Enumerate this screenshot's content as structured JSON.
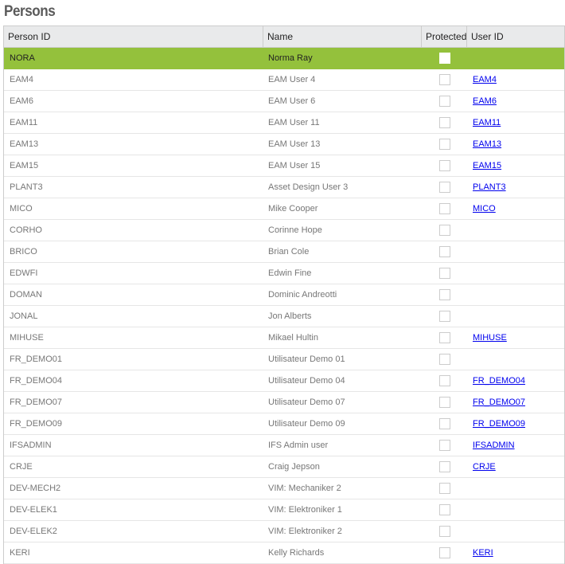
{
  "title": "Persons",
  "columns": [
    "Person ID",
    "Name",
    "Protected",
    "User ID"
  ],
  "rows": [
    {
      "person_id": "NORA",
      "name": "Norma Ray",
      "protected": false,
      "user_id": "",
      "selected": true
    },
    {
      "person_id": "EAM4",
      "name": "EAM User 4",
      "protected": false,
      "user_id": "EAM4"
    },
    {
      "person_id": "EAM6",
      "name": "EAM User 6",
      "protected": false,
      "user_id": "EAM6"
    },
    {
      "person_id": "EAM11",
      "name": "EAM User 11",
      "protected": false,
      "user_id": "EAM11"
    },
    {
      "person_id": "EAM13",
      "name": "EAM User 13",
      "protected": false,
      "user_id": "EAM13"
    },
    {
      "person_id": "EAM15",
      "name": "EAM User 15",
      "protected": false,
      "user_id": "EAM15"
    },
    {
      "person_id": "PLANT3",
      "name": "Asset Design User 3",
      "protected": false,
      "user_id": "PLANT3"
    },
    {
      "person_id": "MICO",
      "name": "Mike Cooper",
      "protected": false,
      "user_id": "MICO"
    },
    {
      "person_id": "CORHO",
      "name": "Corinne Hope",
      "protected": false,
      "user_id": ""
    },
    {
      "person_id": "BRICO",
      "name": "Brian Cole",
      "protected": false,
      "user_id": ""
    },
    {
      "person_id": "EDWFI",
      "name": "Edwin Fine",
      "protected": false,
      "user_id": ""
    },
    {
      "person_id": "DOMAN",
      "name": "Dominic Andreotti",
      "protected": false,
      "user_id": ""
    },
    {
      "person_id": "JONAL",
      "name": "Jon Alberts",
      "protected": false,
      "user_id": ""
    },
    {
      "person_id": "MIHUSE",
      "name": "Mikael Hultin",
      "protected": false,
      "user_id": "MIHUSE"
    },
    {
      "person_id": "FR_DEMO01",
      "name": "Utilisateur Demo 01",
      "protected": false,
      "user_id": ""
    },
    {
      "person_id": "FR_DEMO04",
      "name": "Utilisateur Demo 04",
      "protected": false,
      "user_id": "FR_DEMO04"
    },
    {
      "person_id": "FR_DEMO07",
      "name": "Utilisateur Demo 07",
      "protected": false,
      "user_id": "FR_DEMO07"
    },
    {
      "person_id": "FR_DEMO09",
      "name": "Utilisateur Demo 09",
      "protected": false,
      "user_id": "FR_DEMO09"
    },
    {
      "person_id": "IFSADMIN",
      "name": "IFS Admin user",
      "protected": false,
      "user_id": "IFSADMIN"
    },
    {
      "person_id": "CRJE",
      "name": "Craig Jepson",
      "protected": false,
      "user_id": "CRJE"
    },
    {
      "person_id": "DEV-MECH2",
      "name": "VIM: Mechaniker 2",
      "protected": false,
      "user_id": ""
    },
    {
      "person_id": "DEV-ELEK1",
      "name": "VIM: Elektroniker 1",
      "protected": false,
      "user_id": ""
    },
    {
      "person_id": "DEV-ELEK2",
      "name": "VIM: Elektroniker 2",
      "protected": false,
      "user_id": ""
    },
    {
      "person_id": "KERI",
      "name": "Kelly Richards",
      "protected": false,
      "user_id": "KERI"
    }
  ],
  "colors": {
    "selected_row": "#94c13c",
    "link": "#0000ee"
  }
}
